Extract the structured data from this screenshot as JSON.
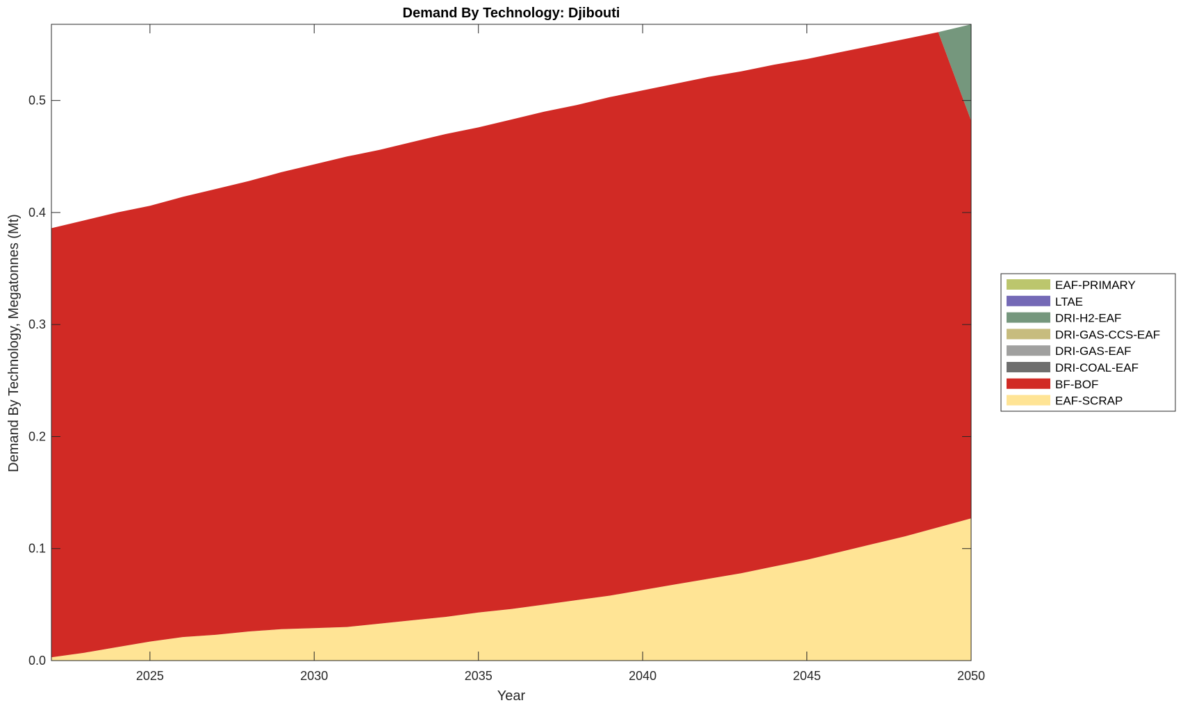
{
  "chart_data": {
    "type": "area",
    "stacked": true,
    "title": "Demand By Technology: Djibouti",
    "xlabel": "Year",
    "ylabel": "Demand By Technology, Megatonnes (Mt)",
    "xlim": [
      2022,
      2050
    ],
    "ylim": [
      0,
      0.568
    ],
    "xticks": [
      2025,
      2030,
      2035,
      2040,
      2045,
      2050
    ],
    "yticks": [
      0.0,
      0.1,
      0.2,
      0.3,
      0.4,
      0.5
    ],
    "ytick_labels": [
      "0.0",
      "0.1",
      "0.2",
      "0.3",
      "0.4",
      "0.5"
    ],
    "grid": false,
    "legend_placement": "right-outside",
    "x": [
      2022,
      2023,
      2024,
      2025,
      2026,
      2027,
      2028,
      2029,
      2030,
      2031,
      2032,
      2033,
      2034,
      2035,
      2036,
      2037,
      2038,
      2039,
      2040,
      2041,
      2042,
      2043,
      2044,
      2045,
      2046,
      2047,
      2048,
      2049,
      2050
    ],
    "series": [
      {
        "name": "EAF-SCRAP",
        "color": "#FFE495",
        "values": [
          0.003,
          0.007,
          0.012,
          0.017,
          0.021,
          0.023,
          0.026,
          0.028,
          0.029,
          0.03,
          0.033,
          0.036,
          0.039,
          0.043,
          0.046,
          0.05,
          0.054,
          0.058,
          0.063,
          0.068,
          0.073,
          0.078,
          0.084,
          0.09,
          0.097,
          0.104,
          0.111,
          0.119,
          0.127
        ]
      },
      {
        "name": "BF-BOF",
        "color": "#D12A25",
        "values": [
          0.383,
          0.386,
          0.388,
          0.389,
          0.393,
          0.398,
          0.402,
          0.408,
          0.414,
          0.42,
          0.423,
          0.427,
          0.431,
          0.433,
          0.437,
          0.44,
          0.442,
          0.445,
          0.446,
          0.447,
          0.448,
          0.448,
          0.448,
          0.447,
          0.446,
          0.445,
          0.444,
          0.442,
          0.355
        ]
      },
      {
        "name": "DRI-COAL-EAF",
        "color": "#6E6E6E",
        "values": [
          0,
          0,
          0,
          0,
          0,
          0,
          0,
          0,
          0,
          0,
          0,
          0,
          0,
          0,
          0,
          0,
          0,
          0,
          0,
          0,
          0,
          0,
          0,
          0,
          0,
          0,
          0,
          0,
          0
        ]
      },
      {
        "name": "DRI-GAS-EAF",
        "color": "#A0A09F",
        "values": [
          0,
          0,
          0,
          0,
          0,
          0,
          0,
          0,
          0,
          0,
          0,
          0,
          0,
          0,
          0,
          0,
          0,
          0,
          0,
          0,
          0,
          0,
          0,
          0,
          0,
          0,
          0,
          0,
          0
        ]
      },
      {
        "name": "DRI-GAS-CCS-EAF",
        "color": "#C7BC7E",
        "values": [
          0,
          0,
          0,
          0,
          0,
          0,
          0,
          0,
          0,
          0,
          0,
          0,
          0,
          0,
          0,
          0,
          0,
          0,
          0,
          0,
          0,
          0,
          0,
          0,
          0,
          0,
          0,
          0,
          0
        ]
      },
      {
        "name": "DRI-H2-EAF",
        "color": "#75977D",
        "values": [
          0,
          0,
          0,
          0,
          0,
          0,
          0,
          0,
          0,
          0,
          0,
          0,
          0,
          0,
          0,
          0,
          0,
          0,
          0,
          0,
          0,
          0,
          0,
          0,
          0,
          0,
          0,
          0,
          0.086
        ]
      },
      {
        "name": "LTAE",
        "color": "#7469B6",
        "values": [
          0,
          0,
          0,
          0,
          0,
          0,
          0,
          0,
          0,
          0,
          0,
          0,
          0,
          0,
          0,
          0,
          0,
          0,
          0,
          0,
          0,
          0,
          0,
          0,
          0,
          0,
          0,
          0,
          0
        ]
      },
      {
        "name": "EAF-PRIMARY",
        "color": "#BCC66D",
        "values": [
          0,
          0,
          0,
          0,
          0,
          0,
          0,
          0,
          0,
          0,
          0,
          0,
          0,
          0,
          0,
          0,
          0,
          0,
          0,
          0,
          0,
          0,
          0,
          0,
          0,
          0,
          0,
          0,
          0
        ]
      }
    ],
    "legend_order": [
      "EAF-PRIMARY",
      "LTAE",
      "DRI-H2-EAF",
      "DRI-GAS-CCS-EAF",
      "DRI-GAS-EAF",
      "DRI-COAL-EAF",
      "BF-BOF",
      "EAF-SCRAP"
    ]
  }
}
